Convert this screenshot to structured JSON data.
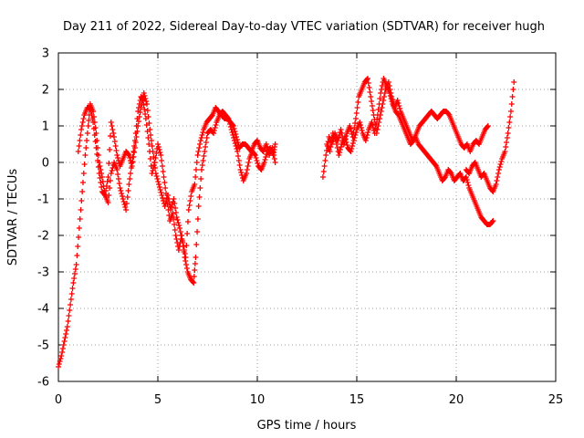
{
  "chart_data": {
    "type": "scatter",
    "title": "Day 211 of 2022, Sidereal Day-to-day VTEC variation (SDTVAR) for receiver hugh",
    "xlabel": "GPS time / hours",
    "ylabel": "SDTVAR / TECUs",
    "xlim": [
      0,
      25
    ],
    "ylim": [
      -6,
      3
    ],
    "xticks": [
      0,
      5,
      10,
      15,
      20,
      25
    ],
    "yticks": [
      -6,
      -5,
      -4,
      -3,
      -2,
      -1,
      0,
      1,
      2,
      3
    ],
    "grid": true,
    "marker": "+",
    "color": "#ff0000",
    "series": [
      {
        "name": "SDTVAR",
        "segments": [
          {
            "x": [
              0.0,
              0.15,
              0.3,
              0.45,
              0.6,
              0.75,
              0.9,
              1.05,
              1.2,
              1.35,
              1.5,
              1.6,
              1.75,
              1.9,
              2.05,
              2.2,
              2.35,
              2.5,
              2.65,
              2.8,
              2.95,
              3.1,
              3.25,
              3.4,
              3.55,
              3.7,
              3.85,
              4.0,
              4.15,
              4.25,
              4.4,
              4.55,
              4.7,
              4.85,
              5.0,
              5.15,
              5.3,
              5.45,
              5.6,
              5.75,
              5.9,
              6.05,
              6.2,
              6.35,
              6.5,
              6.65,
              6.8,
              6.9,
              7.05,
              7.2,
              7.35,
              7.5,
              7.65,
              7.8,
              7.95,
              8.1,
              8.25,
              8.4,
              8.55,
              8.7,
              8.85,
              9.0,
              9.15,
              9.3,
              9.45,
              9.6,
              9.75,
              9.9,
              10.05,
              10.2,
              10.35,
              10.5,
              10.65,
              10.8,
              10.9
            ],
            "y": [
              -5.6,
              -5.3,
              -4.9,
              -4.5,
              -3.9,
              -3.3,
              -2.8,
              -1.8,
              -0.8,
              0.2,
              1.0,
              1.6,
              1.4,
              0.8,
              0.0,
              -0.4,
              -0.9,
              -1.1,
              -0.3,
              0.0,
              -0.2,
              -0.7,
              -1.0,
              -1.3,
              -0.6,
              0.0,
              0.6,
              1.4,
              1.8,
              1.7,
              1.2,
              0.5,
              -0.3,
              0.0,
              0.5,
              0.2,
              -0.4,
              -1.0,
              -1.6,
              -1.4,
              -2.0,
              -2.4,
              -2.0,
              -2.6,
              -3.0,
              -3.2,
              -3.3,
              -2.6,
              -1.2,
              -0.2,
              0.3,
              0.8,
              0.9,
              0.8,
              1.1,
              1.3,
              1.4,
              1.3,
              1.2,
              0.9,
              0.6,
              0.3,
              -0.2,
              -0.5,
              -0.3,
              0.1,
              0.3,
              0.2,
              -0.1,
              -0.2,
              0.0,
              0.3,
              0.4,
              0.2,
              0.5
            ]
          },
          {
            "x": [
              1.0,
              1.15,
              1.3,
              1.45,
              1.6,
              1.75,
              1.9,
              2.05,
              2.2,
              2.35,
              2.5,
              2.65,
              2.8,
              2.95,
              3.1,
              3.25,
              3.4,
              3.55,
              3.7,
              3.85,
              4.0,
              4.15,
              4.3,
              4.45,
              4.6,
              4.75,
              4.9,
              5.05,
              5.2,
              5.35,
              5.5,
              5.65,
              5.8,
              5.95,
              6.1,
              6.25,
              6.4,
              6.55,
              6.7,
              6.85,
              7.0,
              7.15,
              7.3,
              7.45,
              7.6,
              7.75,
              7.9,
              8.05,
              8.2,
              8.35,
              8.5,
              8.65,
              8.8,
              8.95,
              9.1,
              9.25,
              9.4,
              9.55,
              9.7,
              9.85,
              10.0,
              10.15,
              10.3,
              10.45,
              10.6,
              10.75,
              10.9
            ],
            "y": [
              0.3,
              0.9,
              1.3,
              1.5,
              1.5,
              1.1,
              0.4,
              -0.3,
              -0.8,
              -0.9,
              -0.4,
              1.1,
              0.7,
              0.2,
              -0.1,
              0.1,
              0.3,
              0.2,
              -0.1,
              0.4,
              1.0,
              1.5,
              1.9,
              1.6,
              0.9,
              0.3,
              -0.3,
              -0.6,
              -0.9,
              -1.2,
              -0.9,
              -1.3,
              -1.0,
              -1.5,
              -1.8,
              -2.2,
              -2.6,
              -1.3,
              -0.8,
              -0.6,
              0.2,
              0.6,
              0.9,
              1.1,
              1.2,
              1.3,
              1.5,
              1.4,
              1.3,
              1.2,
              1.2,
              1.1,
              1.0,
              0.7,
              0.4,
              0.5,
              0.5,
              0.4,
              0.3,
              0.5,
              0.6,
              0.4,
              0.3,
              0.5,
              0.2,
              0.4,
              0.0
            ]
          },
          {
            "x": [
              13.3,
              13.45,
              13.6,
              13.75,
              13.9,
              14.05,
              14.2,
              14.35,
              14.5,
              14.65,
              14.8,
              14.95,
              15.1,
              15.25,
              15.4,
              15.55,
              15.7,
              15.85,
              16.0,
              16.15,
              16.3,
              16.45,
              16.6,
              16.75,
              16.9,
              17.05,
              17.2,
              17.35,
              17.5,
              17.65,
              17.8,
              17.95,
              18.1,
              18.25,
              18.4,
              18.55,
              18.7,
              18.85,
              19.0,
              19.15,
              19.3,
              19.45,
              19.6,
              19.75,
              19.9,
              20.05,
              20.2,
              20.35,
              20.5,
              20.65,
              20.8,
              20.95,
              21.1,
              21.25,
              21.4,
              21.55,
              21.7,
              21.85
            ],
            "y": [
              -0.4,
              0.2,
              0.7,
              0.5,
              0.8,
              0.6,
              0.9,
              0.5,
              0.8,
              1.0,
              0.7,
              1.2,
              1.8,
              2.0,
              2.2,
              2.3,
              1.8,
              1.3,
              0.8,
              1.2,
              1.6,
              2.0,
              2.2,
              1.8,
              1.5,
              1.7,
              1.4,
              1.2,
              1.0,
              0.8,
              0.6,
              0.7,
              0.5,
              0.4,
              0.3,
              0.2,
              0.1,
              0.0,
              -0.1,
              -0.3,
              -0.5,
              -0.4,
              -0.2,
              -0.3,
              -0.5,
              -0.4,
              -0.3,
              -0.5,
              -0.4,
              -0.7,
              -0.9,
              -1.1,
              -1.3,
              -1.5,
              -1.6,
              -1.7,
              -1.7,
              -1.6
            ]
          },
          {
            "x": [
              13.5,
              13.65,
              13.8,
              13.95,
              14.1,
              14.25,
              14.4,
              14.55,
              14.7,
              14.85,
              15.0,
              15.15,
              15.3,
              15.45,
              15.6,
              15.75,
              15.9,
              16.05,
              16.2,
              16.35,
              16.5,
              16.65,
              16.8,
              16.95,
              17.1,
              17.25,
              17.4,
              17.55,
              17.7,
              17.85,
              18.0,
              18.15,
              18.3,
              18.45,
              18.6,
              18.75,
              18.9,
              19.05,
              19.2,
              19.35,
              19.5,
              19.65,
              19.8,
              19.95,
              20.1,
              20.25,
              20.4,
              20.55,
              20.7,
              20.85,
              21.0,
              21.15,
              21.3,
              21.45,
              21.6
            ],
            "y": [
              0.5,
              0.3,
              0.8,
              0.6,
              0.2,
              0.5,
              0.7,
              0.4,
              0.3,
              0.6,
              0.9,
              1.1,
              0.8,
              0.6,
              0.9,
              1.1,
              0.8,
              1.3,
              1.9,
              2.3,
              2.1,
              1.9,
              1.6,
              1.4,
              1.3,
              1.1,
              0.9,
              0.7,
              0.5,
              0.6,
              0.8,
              1.0,
              1.1,
              1.2,
              1.3,
              1.4,
              1.3,
              1.2,
              1.3,
              1.4,
              1.4,
              1.3,
              1.1,
              0.9,
              0.7,
              0.5,
              0.4,
              0.5,
              0.3,
              0.5,
              0.6,
              0.5,
              0.7,
              0.9,
              1.0
            ]
          },
          {
            "x": [
              20.5,
              20.65,
              20.8,
              20.95,
              21.1,
              21.25,
              21.4,
              21.55,
              21.7,
              21.85,
              22.0,
              22.15,
              22.3,
              22.45,
              22.6,
              22.75,
              22.9
            ],
            "y": [
              -0.2,
              -0.3,
              -0.1,
              0.0,
              -0.2,
              -0.4,
              -0.3,
              -0.5,
              -0.7,
              -0.8,
              -0.6,
              -0.2,
              0.1,
              0.3,
              0.8,
              1.4,
              2.2
            ]
          }
        ]
      }
    ]
  }
}
